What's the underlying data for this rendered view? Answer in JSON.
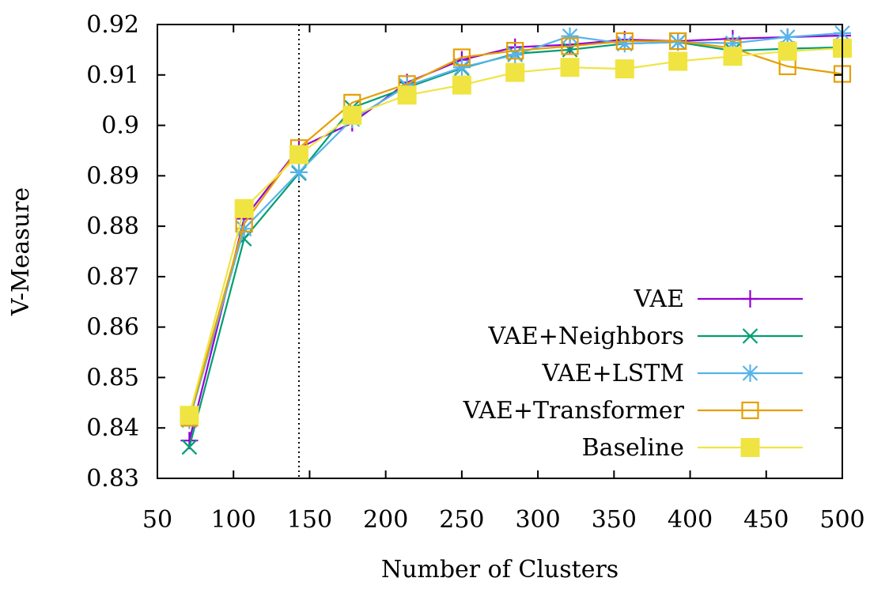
{
  "chart_data": {
    "type": "line",
    "xlabel": "Number of Clusters",
    "ylabel": "V-Measure",
    "xlim": [
      50,
      500
    ],
    "ylim": [
      0.83,
      0.92
    ],
    "x_ticks": [
      50,
      100,
      150,
      200,
      250,
      300,
      350,
      400,
      450,
      500
    ],
    "x_tick_labels": [
      "50",
      "100",
      "150",
      "200",
      "250",
      "300",
      "350",
      "400",
      "450",
      "500"
    ],
    "y_ticks": [
      0.83,
      0.84,
      0.85,
      0.86,
      0.87,
      0.88,
      0.89,
      0.9,
      0.91,
      0.92
    ],
    "y_tick_labels": [
      "0.83",
      "0.84",
      "0.85",
      "0.86",
      "0.87",
      "0.88",
      "0.89",
      "0.9",
      "0.91",
      "0.92"
    ],
    "reference_line_x": 143,
    "grid": false,
    "legend_position": "bottom-right",
    "x": [
      71,
      107,
      143,
      178,
      214,
      250,
      285,
      321,
      357,
      392,
      428,
      464,
      500
    ],
    "series": [
      {
        "name": "VAE",
        "color": "#9400d3",
        "marker": "plus",
        "values": [
          0.8375,
          0.8815,
          0.8955,
          0.9005,
          0.9085,
          0.913,
          0.9155,
          0.916,
          0.917,
          0.9167,
          0.9172,
          0.9175,
          0.9178
        ]
      },
      {
        "name": "VAE+Neighbors",
        "color": "#009e73",
        "marker": "x",
        "values": [
          0.8362,
          0.8775,
          0.8905,
          0.9035,
          0.9075,
          0.9113,
          0.9142,
          0.915,
          0.9162,
          0.9165,
          0.9148,
          0.9152,
          0.9155
        ]
      },
      {
        "name": "VAE+LSTM",
        "color": "#56b4e9",
        "marker": "asterisk",
        "values": [
          0.8415,
          0.8795,
          0.8907,
          0.9012,
          0.9078,
          0.9115,
          0.914,
          0.9177,
          0.9162,
          0.9165,
          0.9163,
          0.9175,
          0.9183
        ]
      },
      {
        "name": "VAE+Transformer",
        "color": "#e69f00",
        "marker": "open-square",
        "values": [
          0.842,
          0.8805,
          0.8955,
          0.9045,
          0.9082,
          0.9135,
          0.9148,
          0.9157,
          0.9167,
          0.9167,
          0.9153,
          0.9117,
          0.9102
        ]
      },
      {
        "name": "Baseline",
        "color": "#f0e442",
        "marker": "filled-square",
        "values": [
          0.8425,
          0.8835,
          0.8942,
          0.902,
          0.906,
          0.908,
          0.9105,
          0.9115,
          0.9112,
          0.9127,
          0.9137,
          0.9147,
          0.9153
        ]
      }
    ]
  }
}
